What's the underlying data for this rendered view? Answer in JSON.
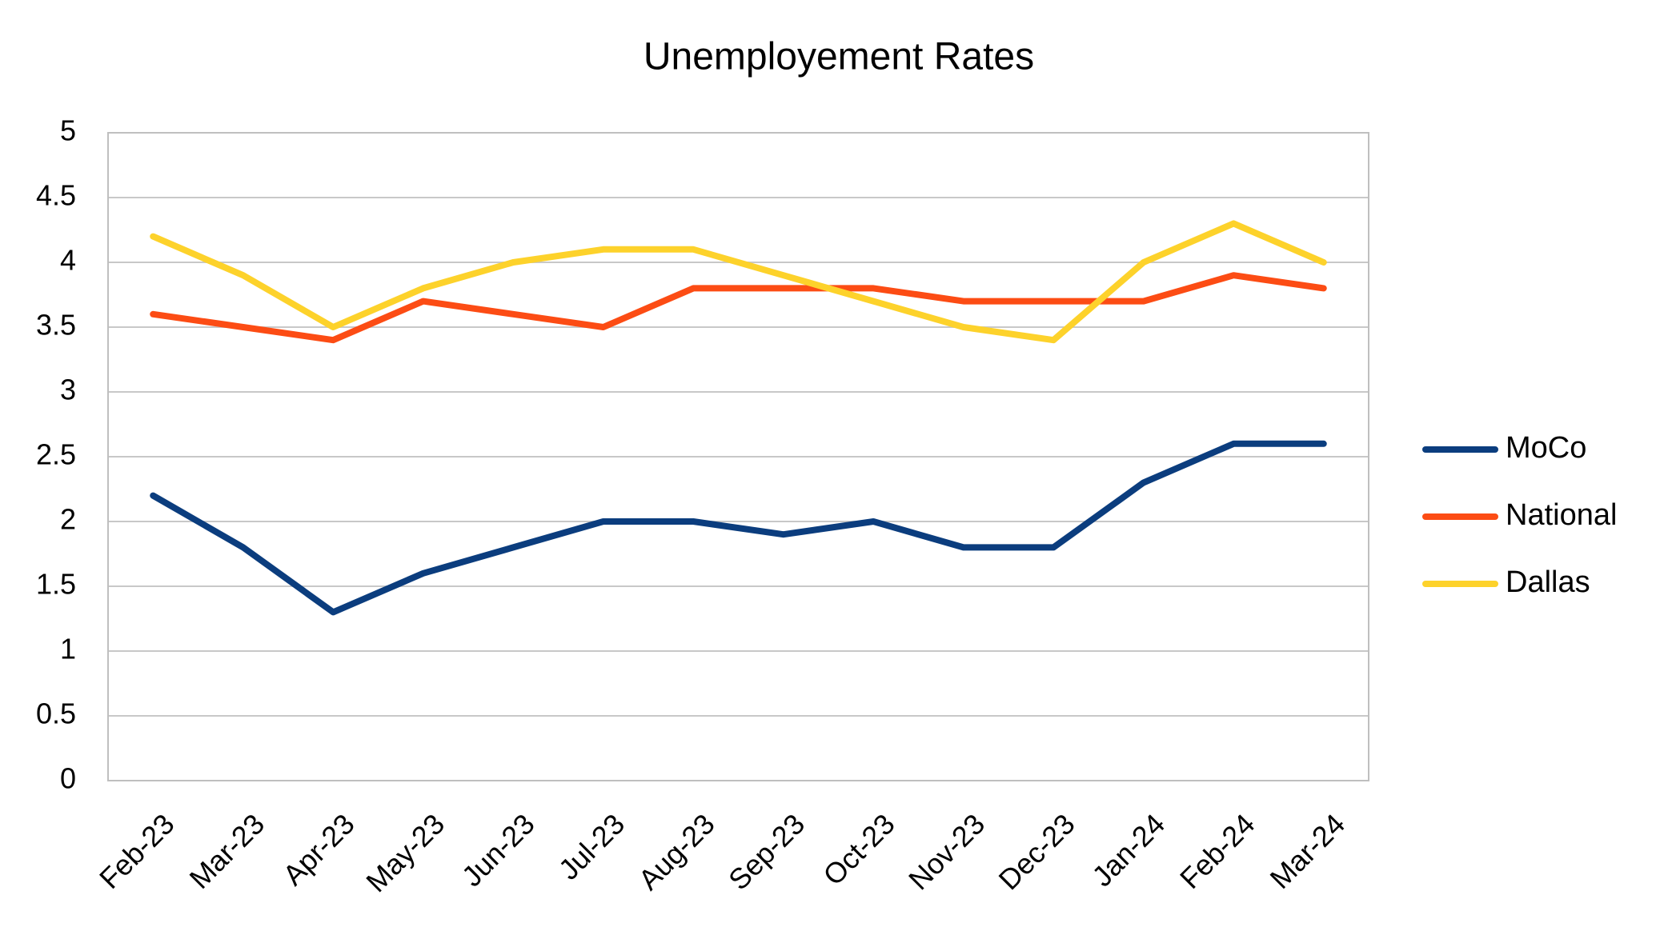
{
  "chart_data": {
    "type": "line",
    "title": "Unemployement Rates",
    "categories": [
      "Feb-23",
      "Mar-23",
      "Apr-23",
      "May-23",
      "Jun-23",
      "Jul-23",
      "Aug-23",
      "Sep-23",
      "Oct-23",
      "Nov-23",
      "Dec-23",
      "Jan-24",
      "Feb-24",
      "Mar-24"
    ],
    "series": [
      {
        "name": "MoCo",
        "color": "#0b3d7e",
        "values": [
          2.2,
          1.8,
          1.3,
          1.6,
          1.8,
          2.0,
          2.0,
          1.9,
          2.0,
          1.8,
          1.8,
          2.3,
          2.6,
          2.6
        ]
      },
      {
        "name": "National",
        "color": "#fc4c14",
        "values": [
          3.6,
          3.5,
          3.4,
          3.7,
          3.6,
          3.5,
          3.8,
          3.8,
          3.8,
          3.7,
          3.7,
          3.7,
          3.9,
          3.8
        ]
      },
      {
        "name": "Dallas",
        "color": "#fdd22b",
        "values": [
          4.2,
          3.9,
          3.5,
          3.8,
          4.0,
          4.1,
          4.1,
          3.9,
          3.7,
          3.5,
          3.4,
          4.0,
          4.3,
          4.0
        ]
      }
    ],
    "ylim": [
      0,
      5
    ],
    "yticks": [
      0,
      0.5,
      1,
      1.5,
      2,
      2.5,
      3,
      3.5,
      4,
      4.5,
      5
    ],
    "grid": true,
    "legend": "right"
  }
}
